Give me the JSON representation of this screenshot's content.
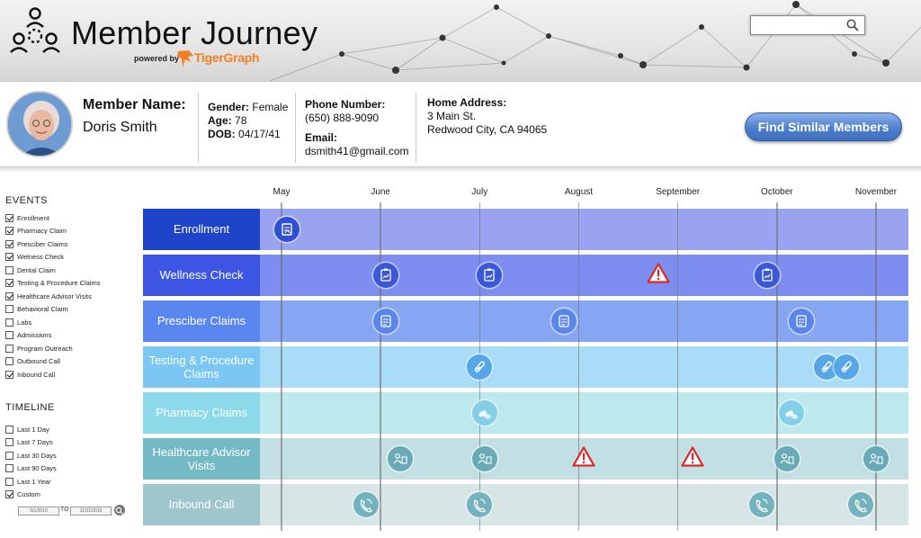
{
  "app": {
    "title": "Member Journey",
    "powered_by": "powered by",
    "vendor": "TigerGraph"
  },
  "search": {
    "placeholder": "",
    "value": ""
  },
  "member": {
    "name_label": "Member Name:",
    "name": "Doris Smith",
    "gender_label": "Gender:",
    "gender": "Female",
    "age_label": "Age:",
    "age": "78",
    "dob_label": "DOB:",
    "dob": "04/17/41",
    "phone_label": "Phone Number:",
    "phone": "(650) 888-9090",
    "email_label": "Email:",
    "email": "dsmith41@gmail.com",
    "address_label": "Home Address:",
    "address_line1": "3 Main St.",
    "address_line2": "Redwood City, CA 94065",
    "find_similar": "Find Similar Members"
  },
  "events": {
    "title": "EVENTS",
    "items": [
      {
        "label": "Enrollment",
        "checked": true
      },
      {
        "label": "Pharmacy Claim",
        "checked": true
      },
      {
        "label": "Presciber Claims",
        "checked": true
      },
      {
        "label": "Welness Check",
        "checked": true
      },
      {
        "label": "Dental Claim",
        "checked": false
      },
      {
        "label": "Testing & Procedure Claims",
        "checked": true
      },
      {
        "label": "Healthcare Advisor Visits",
        "checked": true
      },
      {
        "label": "Behavioral Claim",
        "checked": false
      },
      {
        "label": "Labs",
        "checked": false
      },
      {
        "label": "Admissions",
        "checked": false
      },
      {
        "label": "Program Outreach",
        "checked": false
      },
      {
        "label": "Outbound Call",
        "checked": false
      },
      {
        "label": "Inbound Call",
        "checked": true
      }
    ]
  },
  "timeline_filter": {
    "title": "TIMELINE",
    "items": [
      {
        "label": "Last 1 Day",
        "checked": false
      },
      {
        "label": "Last 7 Days",
        "checked": false
      },
      {
        "label": "Last 30 Days",
        "checked": false
      },
      {
        "label": "Last 90 Days",
        "checked": false
      },
      {
        "label": "Last 1 Year",
        "checked": false
      },
      {
        "label": "Custom",
        "checked": true
      }
    ],
    "from": "5/1/2019",
    "to_label": "TO",
    "to": "11/31/2019"
  },
  "timeline": {
    "months": [
      "May",
      "June",
      "July",
      "August",
      "September",
      "October",
      "November"
    ],
    "rows": [
      {
        "label": "Enrollment",
        "bg": "#1f44c9",
        "track": "#9aa3ef",
        "marker": "#2f4fd6",
        "icon": "document",
        "events_month": [
          0.05
        ]
      },
      {
        "label": "Wellness Check",
        "bg": "#3d55e4",
        "track": "#7d8ef0",
        "marker": "#3c57d8",
        "icon": "clipboard-chart",
        "events_month": [
          1.05,
          2.1,
          4.9
        ],
        "warnings_month": [
          3.8
        ]
      },
      {
        "label": "Presciber Claims",
        "bg": "#5a86ef",
        "track": "#86a6f3",
        "marker": "#5b85ea",
        "icon": "prescription",
        "events_month": [
          1.05,
          2.85,
          5.25
        ]
      },
      {
        "label": "Testing & Procedure Claims",
        "bg": "#79c7f2",
        "track": "#a8dcf7",
        "marker": "#56a6e8",
        "icon": "test-tube",
        "events_month": [
          2.0,
          5.5,
          5.7
        ]
      },
      {
        "label": "Pharmacy Claims",
        "bg": "#8cd9ea",
        "track": "#bde8ee",
        "marker": "#82cfe7",
        "icon": "pills",
        "events_month": [
          2.05,
          5.15
        ]
      },
      {
        "label": "Healthcare Advisor Visits",
        "bg": "#73b9c6",
        "track": "#c2e0e4",
        "marker": "#69aab6",
        "icon": "doctor",
        "events_month": [
          1.2,
          2.05,
          5.1,
          6.0
        ],
        "warnings_month": [
          3.05,
          4.15
        ]
      },
      {
        "label": "Inbound Call",
        "bg": "#9fc6cd",
        "track": "#d8e5e7",
        "marker": "#74b3bd",
        "icon": "phone",
        "events_month": [
          0.85,
          2.0,
          4.85,
          5.85
        ]
      }
    ]
  },
  "colors": {
    "warning": "#d92a2a",
    "header_bg": "#e6e6e6",
    "button": "#4e7fcd"
  }
}
